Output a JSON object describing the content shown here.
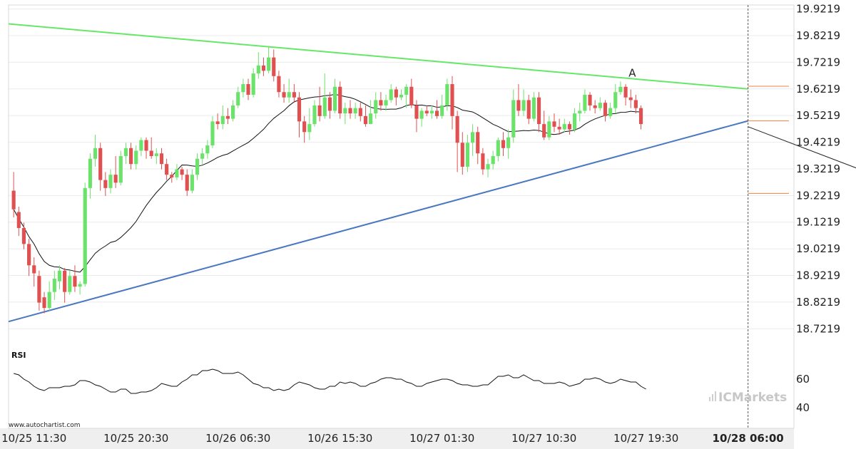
{
  "source": "www.autochartist.com",
  "brand": {
    "prefix": "IC",
    "name": "Markets",
    "color": "#c4c4c4"
  },
  "pattern_marker": "A",
  "colors": {
    "bull": "#6be36b",
    "bear": "#e05050",
    "resistance": "#66e866",
    "support": "#4a78c0",
    "level": "#f08040",
    "ma": "#111111",
    "forecast": "#222222"
  },
  "chart_data": {
    "type": "candlestick",
    "price_axis": {
      "ticks": [
        "19.9219",
        "19.8219",
        "19.7219",
        "19.6219",
        "19.5219",
        "19.4219",
        "19.3219",
        "19.2219",
        "19.1219",
        "19.0219",
        "18.9219",
        "18.8219",
        "18.7219"
      ],
      "ylim": [
        18.6719,
        19.9369
      ]
    },
    "time_axis": {
      "labels": [
        "10/25 11:30",
        "10/25 20:30",
        "10/26 06:30",
        "10/26 15:30",
        "10/27 01:30",
        "10/27 10:30",
        "10/27 19:30",
        "10/28 06:00"
      ],
      "highlight": "10/28 06:00",
      "xlim": [
        -1,
        153
      ],
      "label_bars": [
        4,
        24,
        44,
        64,
        84,
        104,
        124,
        144
      ]
    },
    "levels": [
      19.632,
      19.502,
      19.23
    ],
    "resistance_line": {
      "from": [
        -1,
        19.866
      ],
      "to": [
        144,
        19.622
      ]
    },
    "support_line": {
      "from": [
        -1,
        18.749
      ],
      "to": [
        144,
        19.502
      ]
    },
    "forecast_arrow": {
      "from": [
        144,
        19.48
      ],
      "to": [
        178,
        19.232
      ]
    },
    "candles": [
      [
        19.24,
        19.17,
        19.31,
        19.14
      ],
      [
        19.16,
        19.1,
        19.18,
        19.07
      ],
      [
        19.1,
        19.04,
        19.12,
        19.02
      ],
      [
        19.04,
        18.96,
        19.06,
        18.92
      ],
      [
        18.96,
        18.93,
        18.99,
        18.88
      ],
      [
        18.92,
        18.82,
        18.94,
        18.79
      ],
      [
        18.84,
        18.8,
        18.86,
        18.78
      ],
      [
        18.8,
        18.86,
        18.9,
        18.79
      ],
      [
        18.86,
        18.91,
        18.94,
        18.83
      ],
      [
        18.9,
        18.94,
        18.96,
        18.87
      ],
      [
        18.94,
        18.86,
        18.95,
        18.82
      ],
      [
        18.86,
        18.92,
        18.94,
        18.85
      ],
      [
        18.92,
        18.88,
        18.96,
        18.86
      ],
      [
        18.88,
        18.89,
        18.9,
        18.85
      ],
      [
        18.89,
        19.25,
        19.27,
        18.88
      ],
      [
        19.25,
        19.36,
        19.38,
        19.21
      ],
      [
        19.36,
        19.4,
        19.45,
        19.33
      ],
      [
        19.4,
        19.28,
        19.42,
        19.24
      ],
      [
        19.28,
        19.25,
        19.31,
        19.22
      ],
      [
        19.25,
        19.3,
        19.32,
        19.23
      ],
      [
        19.3,
        19.27,
        19.37,
        19.25
      ],
      [
        19.27,
        19.37,
        19.39,
        19.26
      ],
      [
        19.37,
        19.4,
        19.42,
        19.34
      ],
      [
        19.4,
        19.34,
        19.42,
        19.32
      ],
      [
        19.34,
        19.39,
        19.41,
        19.32
      ],
      [
        19.39,
        19.43,
        19.44,
        19.37
      ],
      [
        19.43,
        19.39,
        19.44,
        19.36
      ],
      [
        19.39,
        19.37,
        19.44,
        19.36
      ],
      [
        19.37,
        19.38,
        19.4,
        19.34
      ],
      [
        19.38,
        19.34,
        19.4,
        19.32
      ],
      [
        19.34,
        19.3,
        19.36,
        19.28
      ],
      [
        19.3,
        19.29,
        19.31,
        19.27
      ],
      [
        19.29,
        19.32,
        19.34,
        19.28
      ],
      [
        19.32,
        19.3,
        19.33,
        19.28
      ],
      [
        19.3,
        19.24,
        19.32,
        19.22
      ],
      [
        19.24,
        19.3,
        19.32,
        19.23
      ],
      [
        19.3,
        19.36,
        19.38,
        19.28
      ],
      [
        19.36,
        19.38,
        19.4,
        19.34
      ],
      [
        19.38,
        19.41,
        19.43,
        19.36
      ],
      [
        19.41,
        19.5,
        19.52,
        19.4
      ],
      [
        19.5,
        19.49,
        19.53,
        19.47
      ],
      [
        19.49,
        19.52,
        19.56,
        19.47
      ],
      [
        19.52,
        19.51,
        19.55,
        19.49
      ],
      [
        19.51,
        19.56,
        19.58,
        19.5
      ],
      [
        19.56,
        19.61,
        19.63,
        19.55
      ],
      [
        19.61,
        19.64,
        19.66,
        19.59
      ],
      [
        19.64,
        19.6,
        19.66,
        19.58
      ],
      [
        19.6,
        19.68,
        19.7,
        19.59
      ],
      [
        19.68,
        19.71,
        19.76,
        19.66
      ],
      [
        19.71,
        19.69,
        19.74,
        19.67
      ],
      [
        19.69,
        19.74,
        19.78,
        19.68
      ],
      [
        19.74,
        19.67,
        19.77,
        19.65
      ],
      [
        19.67,
        19.61,
        19.69,
        19.59
      ],
      [
        19.61,
        19.59,
        19.64,
        19.57
      ],
      [
        19.59,
        19.61,
        19.66,
        19.57
      ],
      [
        19.61,
        19.59,
        19.64,
        19.57
      ],
      [
        19.59,
        19.5,
        19.61,
        19.44
      ],
      [
        19.5,
        19.46,
        19.52,
        19.42
      ],
      [
        19.46,
        19.49,
        19.55,
        19.43
      ],
      [
        19.49,
        19.56,
        19.58,
        19.48
      ],
      [
        19.56,
        19.52,
        19.63,
        19.5
      ],
      [
        19.52,
        19.59,
        19.68,
        19.51
      ],
      [
        19.59,
        19.54,
        19.61,
        19.51
      ],
      [
        19.54,
        19.63,
        19.66,
        19.53
      ],
      [
        19.63,
        19.53,
        19.65,
        19.51
      ],
      [
        19.53,
        19.55,
        19.57,
        19.49
      ],
      [
        19.55,
        19.53,
        19.58,
        19.51
      ],
      [
        19.53,
        19.55,
        19.57,
        19.51
      ],
      [
        19.55,
        19.52,
        19.57,
        19.5
      ],
      [
        19.52,
        19.49,
        19.56,
        19.48
      ],
      [
        19.49,
        19.53,
        19.58,
        19.49
      ],
      [
        19.53,
        19.58,
        19.61,
        19.51
      ],
      [
        19.58,
        19.56,
        19.61,
        19.54
      ],
      [
        19.56,
        19.58,
        19.6,
        19.54
      ],
      [
        19.58,
        19.62,
        19.64,
        19.57
      ],
      [
        19.62,
        19.59,
        19.63,
        19.56
      ],
      [
        19.59,
        19.6,
        19.62,
        19.58
      ],
      [
        19.6,
        19.63,
        19.64,
        19.55
      ],
      [
        19.63,
        19.56,
        19.66,
        19.55
      ],
      [
        19.56,
        19.51,
        19.58,
        19.46
      ],
      [
        19.51,
        19.54,
        19.55,
        19.48
      ],
      [
        19.54,
        19.53,
        19.56,
        19.52
      ],
      [
        19.53,
        19.54,
        19.56,
        19.51
      ],
      [
        19.54,
        19.52,
        19.58,
        19.51
      ],
      [
        19.52,
        19.56,
        19.6,
        19.51
      ],
      [
        19.56,
        19.64,
        19.66,
        19.54
      ],
      [
        19.64,
        19.52,
        19.67,
        19.47
      ],
      [
        19.52,
        19.42,
        19.54,
        19.31
      ],
      [
        19.42,
        19.33,
        19.46,
        19.3
      ],
      [
        19.33,
        19.42,
        19.45,
        19.31
      ],
      [
        19.42,
        19.46,
        19.49,
        19.37
      ],
      [
        19.46,
        19.38,
        19.48,
        19.34
      ],
      [
        19.38,
        19.32,
        19.4,
        19.3
      ],
      [
        19.32,
        19.34,
        19.36,
        19.29
      ],
      [
        19.34,
        19.37,
        19.39,
        19.32
      ],
      [
        19.37,
        19.43,
        19.44,
        19.35
      ],
      [
        19.43,
        19.4,
        19.46,
        19.37
      ],
      [
        19.4,
        19.44,
        19.47,
        19.36
      ],
      [
        19.44,
        19.58,
        19.62,
        19.42
      ],
      [
        19.58,
        19.54,
        19.64,
        19.52
      ],
      [
        19.54,
        19.58,
        19.62,
        19.52
      ],
      [
        19.58,
        19.51,
        19.6,
        19.49
      ],
      [
        19.51,
        19.59,
        19.61,
        19.5
      ],
      [
        19.59,
        19.49,
        19.61,
        19.46
      ],
      [
        19.49,
        19.44,
        19.54,
        19.43
      ],
      [
        19.44,
        19.5,
        19.52,
        19.43
      ],
      [
        19.5,
        19.48,
        19.53,
        19.46
      ],
      [
        19.48,
        19.47,
        19.51,
        19.45
      ],
      [
        19.47,
        19.49,
        19.51,
        19.46
      ],
      [
        19.49,
        19.47,
        19.5,
        19.45
      ],
      [
        19.47,
        19.53,
        19.55,
        19.46
      ],
      [
        19.53,
        19.54,
        19.57,
        19.5
      ],
      [
        19.54,
        19.6,
        19.62,
        19.53
      ],
      [
        19.6,
        19.56,
        19.61,
        19.54
      ],
      [
        19.56,
        19.55,
        19.58,
        19.53
      ],
      [
        19.55,
        19.57,
        19.59,
        19.54
      ],
      [
        19.57,
        19.52,
        19.58,
        19.5
      ],
      [
        19.52,
        19.55,
        19.57,
        19.51
      ],
      [
        19.55,
        19.61,
        19.64,
        19.53
      ],
      [
        19.61,
        19.63,
        19.65,
        19.6
      ],
      [
        19.63,
        19.59,
        19.64,
        19.56
      ],
      [
        19.59,
        19.58,
        19.62,
        19.55
      ],
      [
        19.58,
        19.55,
        19.6,
        19.53
      ],
      [
        19.55,
        19.49,
        19.56,
        19.47
      ]
    ],
    "rsi": {
      "label": "RSI",
      "ticks": [
        "60",
        "40"
      ],
      "ylim": [
        30,
        72
      ],
      "values": [
        64,
        63,
        60,
        58,
        55,
        53,
        52,
        54,
        54,
        54,
        55,
        55,
        56,
        59,
        59,
        58,
        56,
        55,
        53,
        51,
        51,
        53,
        53,
        50,
        50,
        51,
        51,
        52,
        54,
        57,
        56,
        55,
        55,
        58,
        60,
        63,
        63,
        66,
        66,
        67,
        66,
        64,
        64,
        64,
        65,
        63,
        60,
        57,
        56,
        54,
        54,
        52,
        53,
        52,
        53,
        56,
        58,
        57,
        56,
        54,
        53,
        53,
        55,
        55,
        58,
        57,
        58,
        57,
        55,
        55,
        57,
        58,
        60,
        61,
        61,
        60,
        60,
        58,
        57,
        55,
        55,
        57,
        58,
        59,
        60,
        60,
        59,
        57,
        56,
        56,
        55,
        55,
        56,
        56,
        59,
        62,
        62,
        63,
        61,
        61,
        63,
        61,
        59,
        59,
        57,
        57,
        57,
        58,
        57,
        55,
        56,
        57,
        60,
        60,
        61,
        60,
        58,
        57,
        58,
        60,
        59,
        58,
        58,
        55,
        53
      ]
    }
  }
}
